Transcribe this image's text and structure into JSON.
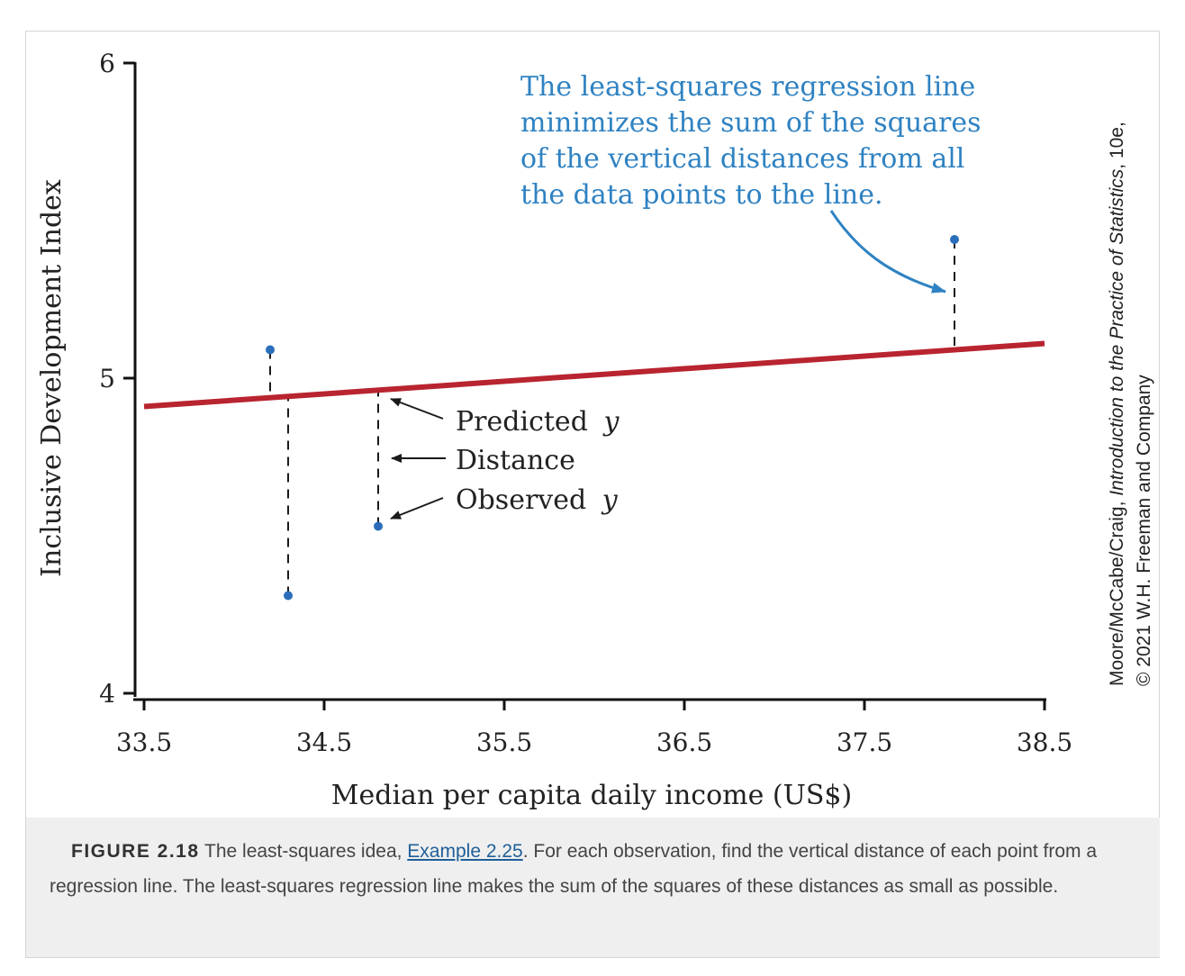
{
  "chart_data": {
    "type": "scatter",
    "xlabel": "Median per capita daily income (US$)",
    "ylabel": "Inclusive Development Index",
    "xlim": [
      33.5,
      38.5
    ],
    "ylim": [
      4,
      6
    ],
    "x_ticks": [
      "33.5",
      "34.5",
      "35.5",
      "36.5",
      "37.5",
      "38.5"
    ],
    "y_ticks": [
      "4",
      "5",
      "6"
    ],
    "points": [
      {
        "x": 34.2,
        "y": 5.09
      },
      {
        "x": 34.3,
        "y": 4.31
      },
      {
        "x": 34.8,
        "y": 4.53
      },
      {
        "x": 38.0,
        "y": 5.44
      }
    ],
    "regression_line": {
      "x": [
        33.5,
        38.5
      ],
      "y": [
        4.91,
        5.11
      ]
    },
    "annotation": [
      "The least-squares regression line",
      "minimizes the sum of the squares",
      "of the vertical distances from all",
      "the data points to the line."
    ],
    "labels": {
      "predicted": "Predicted",
      "distance": "Distance",
      "observed": "Observed",
      "y_symbol": "y"
    },
    "colors": {
      "line": "#b8242f",
      "point": "#2a6ebb",
      "annotation": "#2f82c2"
    }
  },
  "credit": {
    "line1_prefix": "Moore/McCabe/Craig, ",
    "line1_title": "Introduction to the Practice of Statistics",
    "line1_suffix": ", 10e,",
    "line2": "© 2021 W.H. Freeman and Company"
  },
  "caption": {
    "label": "FIGURE 2.18",
    "text_before_link": " The least-squares idea, ",
    "link": "Example 2.25",
    "text_after_link": ". For each observation, find the vertical distance of each point from a regression line. The least-squares regression line makes the sum of the squares of these distances as small as possible."
  }
}
